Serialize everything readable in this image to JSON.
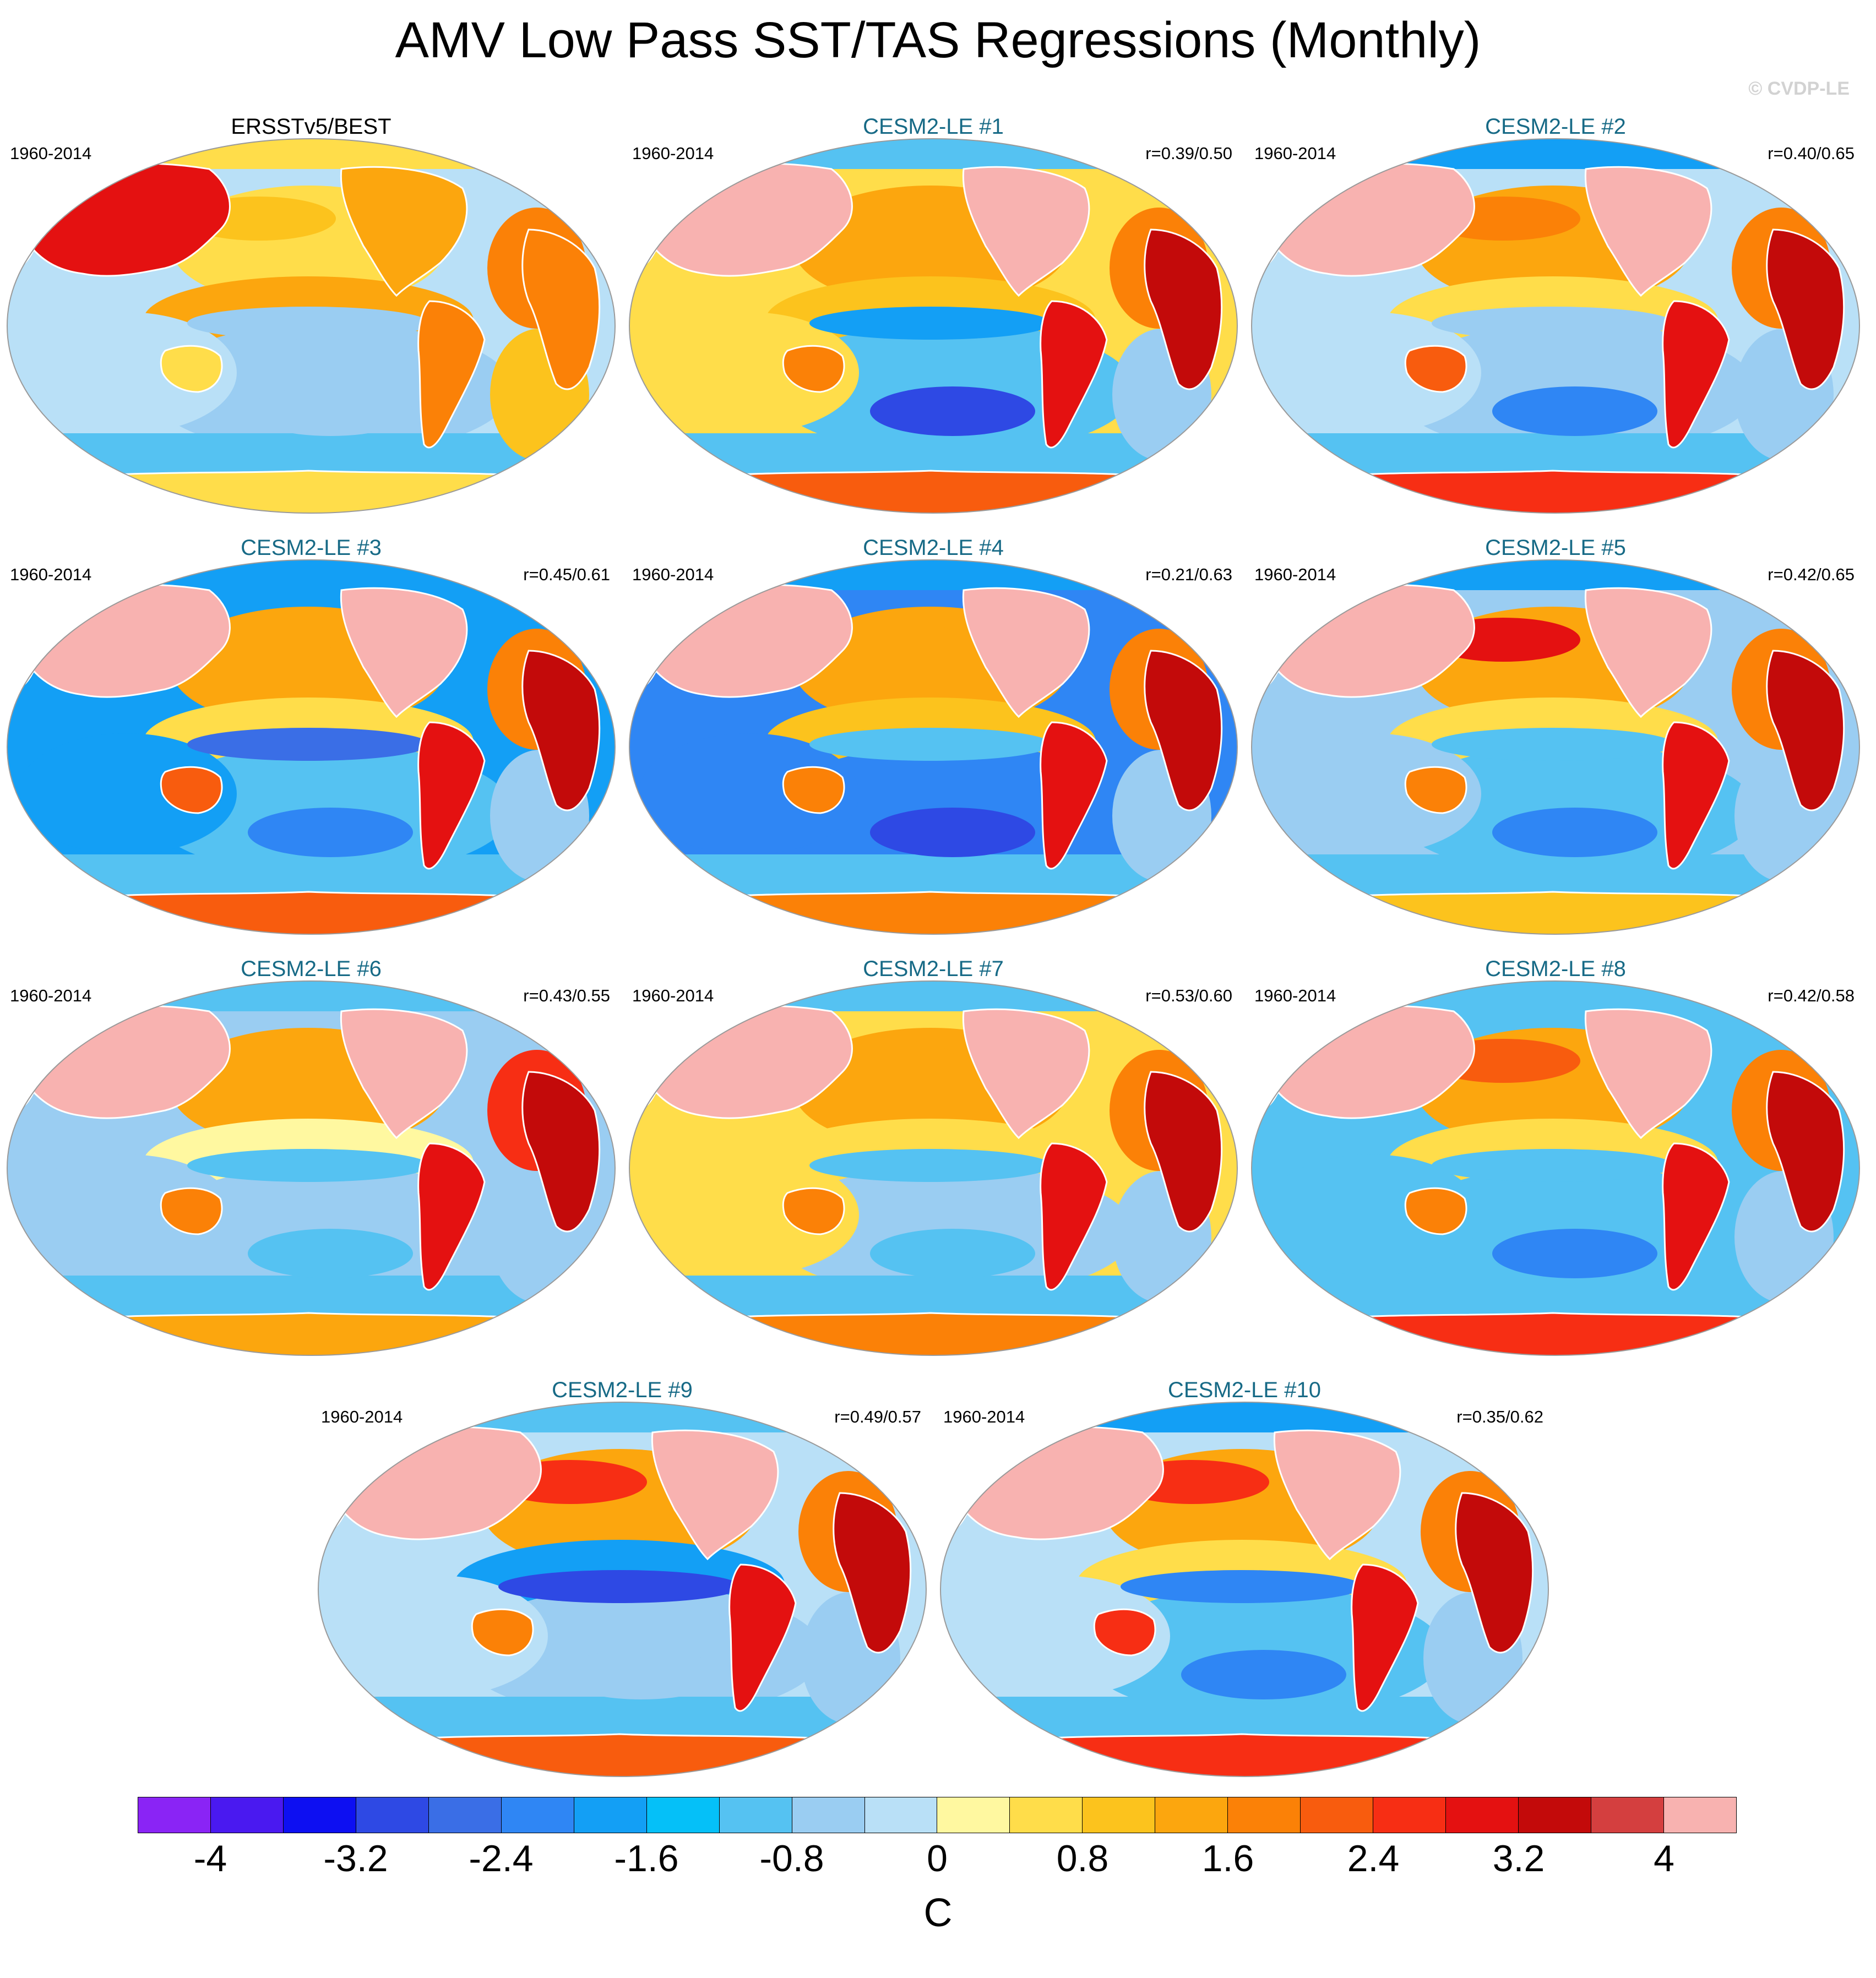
{
  "title": "AMV Low Pass SST/TAS Regressions (Monthly)",
  "credit": "© CVDP-LE",
  "panels": [
    {
      "title": "ERSSTv5/BEST",
      "period": "1960-2014",
      "r": "",
      "kind": "obs",
      "pattern": "obs"
    },
    {
      "title": "CESM2-LE #1",
      "period": "1960-2014",
      "r": "r=0.39/0.50",
      "kind": "model",
      "pattern": "m1"
    },
    {
      "title": "CESM2-LE #2",
      "period": "1960-2014",
      "r": "r=0.40/0.65",
      "kind": "model",
      "pattern": "m2"
    },
    {
      "title": "CESM2-LE #3",
      "period": "1960-2014",
      "r": "r=0.45/0.61",
      "kind": "model",
      "pattern": "m3"
    },
    {
      "title": "CESM2-LE #4",
      "period": "1960-2014",
      "r": "r=0.21/0.63",
      "kind": "model",
      "pattern": "m4"
    },
    {
      "title": "CESM2-LE #5",
      "period": "1960-2014",
      "r": "r=0.42/0.65",
      "kind": "model",
      "pattern": "m5"
    },
    {
      "title": "CESM2-LE #6",
      "period": "1960-2014",
      "r": "r=0.43/0.55",
      "kind": "model",
      "pattern": "m6"
    },
    {
      "title": "CESM2-LE #7",
      "period": "1960-2014",
      "r": "r=0.53/0.60",
      "kind": "model",
      "pattern": "m7"
    },
    {
      "title": "CESM2-LE #8",
      "period": "1960-2014",
      "r": "r=0.42/0.58",
      "kind": "model",
      "pattern": "m8"
    },
    {
      "title": "CESM2-LE #9",
      "period": "1960-2014",
      "r": "r=0.49/0.57",
      "kind": "model",
      "pattern": "m9"
    },
    {
      "title": "CESM2-LE #10",
      "period": "1960-2014",
      "r": "r=0.35/0.62",
      "kind": "model",
      "pattern": "m10"
    }
  ],
  "colorbar": {
    "units": "C",
    "tick_labels": [
      "-4",
      "-3.2",
      "-2.4",
      "-1.6",
      "-0.8",
      "0",
      "0.8",
      "1.6",
      "2.4",
      "3.2",
      "4"
    ],
    "levels": [
      -4.4,
      -4,
      -3.6,
      -3.2,
      -2.8,
      -2.4,
      -2,
      -1.6,
      -1.2,
      -0.8,
      -0.4,
      0,
      0.4,
      0.8,
      1.2,
      1.6,
      2,
      2.4,
      2.8,
      3.2,
      3.6,
      4,
      4.4
    ],
    "colors": [
      "#8a24f5",
      "#4a19f0",
      "#0d0ff2",
      "#2e49e4",
      "#3a6ee6",
      "#2f86f4",
      "#139ff5",
      "#05c0f8",
      "#55c2f2",
      "#9acdf2",
      "#b9e0f7",
      "#fff8a0",
      "#ffdd4a",
      "#fcc31d",
      "#fca60e",
      "#fb8107",
      "#f85c0e",
      "#f72e14",
      "#e41111",
      "#c30a0a",
      "#d43f3f",
      "#f8b2b0"
    ]
  }
}
